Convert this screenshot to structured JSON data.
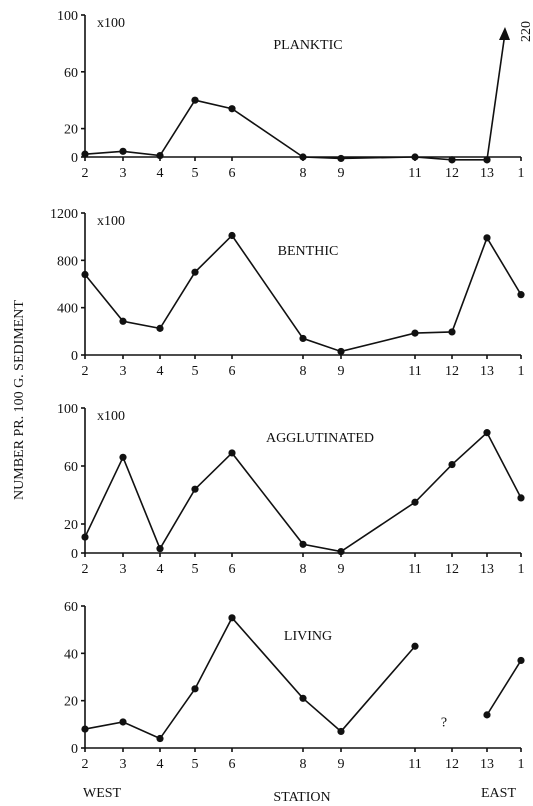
{
  "chart_data": {
    "type": "line",
    "ylabel": "NUMBER PR. 100 G. SEDIMENT",
    "xlabel": "STATION",
    "x_end_labels": {
      "left": "WEST",
      "right": "EAST"
    },
    "stations": [
      "2",
      "3",
      "4",
      "5",
      "6",
      "8",
      "9",
      "11",
      "12",
      "13",
      "1"
    ],
    "panels": [
      {
        "title": "PLANKTIC",
        "multiplier": "x100",
        "ylim": [
          0,
          100
        ],
        "yticks": [
          0,
          20,
          60,
          100
        ],
        "values": [
          2,
          4,
          1,
          40,
          34,
          0,
          -1,
          0,
          -2,
          -2,
          null
        ],
        "arrow": {
          "from_station": "13",
          "to_value_label": "220"
        }
      },
      {
        "title": "BENTHIC",
        "multiplier": "x100",
        "ylim": [
          0,
          1200
        ],
        "yticks": [
          0,
          400,
          800,
          1200
        ],
        "values": [
          680,
          285,
          225,
          700,
          1010,
          140,
          30,
          185,
          195,
          990,
          510
        ]
      },
      {
        "title": "AGGLUTINATED",
        "multiplier": "x100",
        "ylim": [
          0,
          100
        ],
        "yticks": [
          0,
          20,
          60,
          100
        ],
        "values": [
          11,
          66,
          3,
          44,
          69,
          6,
          1,
          35,
          61,
          83,
          38
        ]
      },
      {
        "title": "LIVING",
        "multiplier": "",
        "ylim": [
          0,
          60
        ],
        "yticks": [
          0,
          20,
          40,
          60
        ],
        "values": [
          8,
          11,
          4,
          25,
          55,
          21,
          7,
          43,
          null,
          14,
          37
        ],
        "missing_marker": {
          "station": "12",
          "text": "?"
        }
      }
    ]
  }
}
